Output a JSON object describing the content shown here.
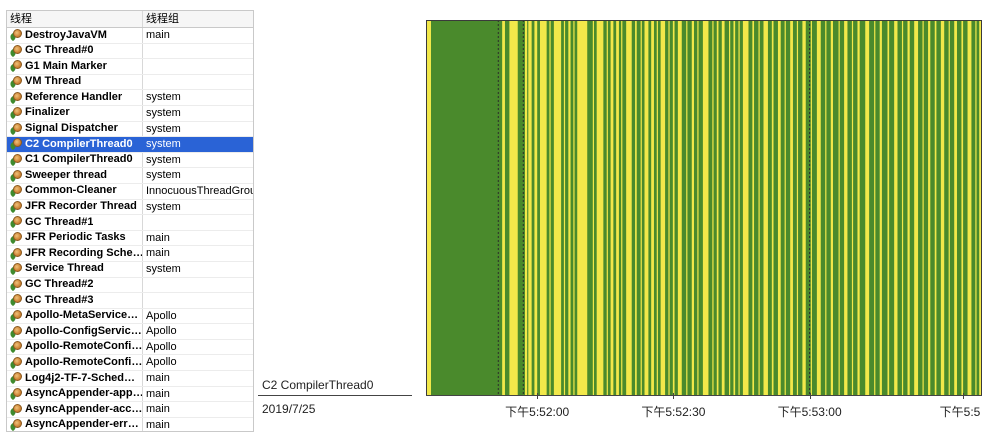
{
  "thread_table": {
    "headers": {
      "name": "线程",
      "group": "线程组"
    },
    "selected_index": 7,
    "rows": [
      {
        "name": "DestroyJavaVM",
        "group": "main"
      },
      {
        "name": "GC Thread#0",
        "group": ""
      },
      {
        "name": "G1 Main Marker",
        "group": ""
      },
      {
        "name": "VM Thread",
        "group": ""
      },
      {
        "name": "Reference Handler",
        "group": "system"
      },
      {
        "name": "Finalizer",
        "group": "system"
      },
      {
        "name": "Signal Dispatcher",
        "group": "system"
      },
      {
        "name": "C2 CompilerThread0",
        "group": "system"
      },
      {
        "name": "C1 CompilerThread0",
        "group": "system"
      },
      {
        "name": "Sweeper thread",
        "group": "system"
      },
      {
        "name": "Common-Cleaner",
        "group": "InnocuousThreadGrou"
      },
      {
        "name": "JFR Recorder Thread",
        "group": "system"
      },
      {
        "name": "GC Thread#1",
        "group": ""
      },
      {
        "name": "JFR Periodic Tasks",
        "group": "main"
      },
      {
        "name": "JFR Recording Sche…",
        "group": "main"
      },
      {
        "name": "Service Thread",
        "group": "system"
      },
      {
        "name": "GC Thread#2",
        "group": ""
      },
      {
        "name": "GC Thread#3",
        "group": ""
      },
      {
        "name": "Apollo-MetaService…",
        "group": "Apollo"
      },
      {
        "name": "Apollo-ConfigServic…",
        "group": "Apollo"
      },
      {
        "name": "Apollo-RemoteConfi…",
        "group": "Apollo"
      },
      {
        "name": "Apollo-RemoteConfi…",
        "group": "Apollo"
      },
      {
        "name": "Log4j2-TF-7-Sched…",
        "group": "main"
      },
      {
        "name": "AsyncAppender-app…",
        "group": "main"
      },
      {
        "name": "AsyncAppender-acc…",
        "group": "main"
      },
      {
        "name": "AsyncAppender-err…",
        "group": "main"
      }
    ]
  },
  "timeline": {
    "lane_label": "C2 CompilerThread0",
    "date": "2019/7/25",
    "tick_labels": [
      "下午5:52:00",
      "下午5:52:30",
      "下午5:53:00",
      "下午5:5"
    ],
    "colors": {
      "running": "#4a8a2c",
      "waiting": "#f2e84a",
      "border": "#3a3a3a"
    }
  },
  "chart_data": {
    "type": "timeline",
    "lane": "C2 CompilerThread0",
    "date": "2019/7/25",
    "x_tick_labels": [
      "下午5:52:00",
      "下午5:52:30",
      "下午5:53:00",
      "下午5:5"
    ],
    "x_tick_positions_fraction": [
      0.2,
      0.445,
      0.69,
      0.965
    ],
    "states": [
      "running",
      "waiting"
    ],
    "waiting_segments_fraction": [
      [
        0.0,
        0.009
      ],
      [
        0.137,
        0.142
      ],
      [
        0.15,
        0.165
      ],
      [
        0.178,
        0.182
      ],
      [
        0.184,
        0.19
      ],
      [
        0.195,
        0.2
      ],
      [
        0.205,
        0.217
      ],
      [
        0.222,
        0.224
      ],
      [
        0.23,
        0.243
      ],
      [
        0.248,
        0.25
      ],
      [
        0.256,
        0.26
      ],
      [
        0.265,
        0.267
      ],
      [
        0.272,
        0.29
      ],
      [
        0.3,
        0.302
      ],
      [
        0.307,
        0.319
      ],
      [
        0.325,
        0.327
      ],
      [
        0.332,
        0.337
      ],
      [
        0.342,
        0.347
      ],
      [
        0.351,
        0.353
      ],
      [
        0.36,
        0.37
      ],
      [
        0.376,
        0.379
      ],
      [
        0.386,
        0.388
      ],
      [
        0.393,
        0.4
      ],
      [
        0.405,
        0.41
      ],
      [
        0.415,
        0.417
      ],
      [
        0.422,
        0.43
      ],
      [
        0.436,
        0.438
      ],
      [
        0.444,
        0.447
      ],
      [
        0.453,
        0.46
      ],
      [
        0.468,
        0.47
      ],
      [
        0.478,
        0.482
      ],
      [
        0.488,
        0.49
      ],
      [
        0.498,
        0.508
      ],
      [
        0.515,
        0.517
      ],
      [
        0.523,
        0.526
      ],
      [
        0.532,
        0.537
      ],
      [
        0.545,
        0.547
      ],
      [
        0.553,
        0.556
      ],
      [
        0.562,
        0.564
      ],
      [
        0.57,
        0.58
      ],
      [
        0.587,
        0.59
      ],
      [
        0.598,
        0.6
      ],
      [
        0.607,
        0.615
      ],
      [
        0.622,
        0.625
      ],
      [
        0.633,
        0.638
      ],
      [
        0.645,
        0.647
      ],
      [
        0.655,
        0.66
      ],
      [
        0.667,
        0.669
      ],
      [
        0.677,
        0.683
      ],
      [
        0.692,
        0.694
      ],
      [
        0.703,
        0.71
      ],
      [
        0.718,
        0.72
      ],
      [
        0.728,
        0.732
      ],
      [
        0.742,
        0.744
      ],
      [
        0.752,
        0.758
      ],
      [
        0.766,
        0.768
      ],
      [
        0.776,
        0.78
      ],
      [
        0.79,
        0.797
      ],
      [
        0.806,
        0.808
      ],
      [
        0.816,
        0.82
      ],
      [
        0.83,
        0.833
      ],
      [
        0.842,
        0.848
      ],
      [
        0.856,
        0.858
      ],
      [
        0.866,
        0.87
      ],
      [
        0.878,
        0.885
      ],
      [
        0.893,
        0.895
      ],
      [
        0.903,
        0.907
      ],
      [
        0.915,
        0.918
      ],
      [
        0.926,
        0.932
      ],
      [
        0.94,
        0.942
      ],
      [
        0.95,
        0.955
      ],
      [
        0.963,
        0.966
      ],
      [
        0.974,
        0.981
      ],
      [
        0.988,
        0.99
      ],
      [
        0.995,
        1.0
      ]
    ]
  }
}
